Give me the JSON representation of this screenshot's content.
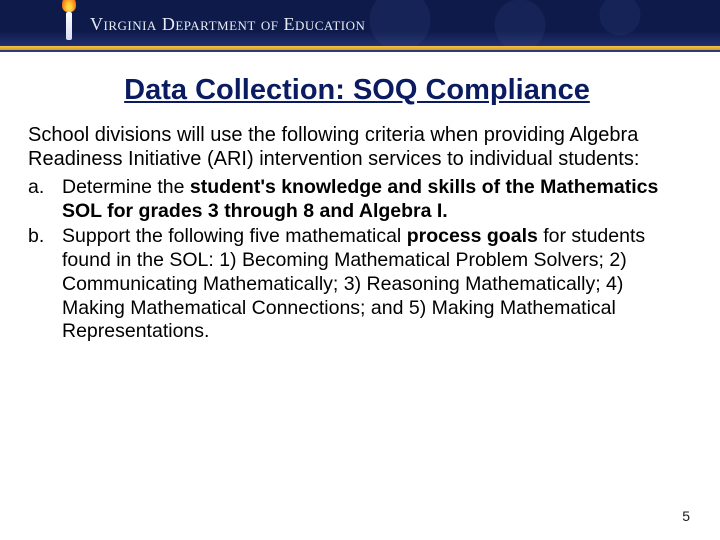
{
  "header": {
    "dept_text": "Virginia Department of Education"
  },
  "slide": {
    "title": "Data Collection: SOQ Compliance",
    "intro": "School divisions will use the following criteria when providing Algebra Readiness Initiative (ARI) intervention services to individual students:",
    "items": [
      {
        "letter": "a.",
        "pre": "Determine the ",
        "bold": "student's knowledge and skills of the Mathematics SOL for grades 3 through 8 and Algebra I.",
        "post": ""
      },
      {
        "letter": "b.",
        "pre": "Support the following five mathematical ",
        "bold": "process goals",
        "post": " for students found in the SOL: 1) Becoming Mathematical Problem Solvers; 2) Communicating Mathematically; 3) Reasoning Mathematically; 4) Making Mathematical Connections; and 5) Making Mathematical Representations."
      }
    ],
    "page_number": "5"
  },
  "colors": {
    "title_color": "#0a1b62",
    "header_bg_top": "#0d1a4a",
    "accent_gold": "#f6c24a"
  }
}
